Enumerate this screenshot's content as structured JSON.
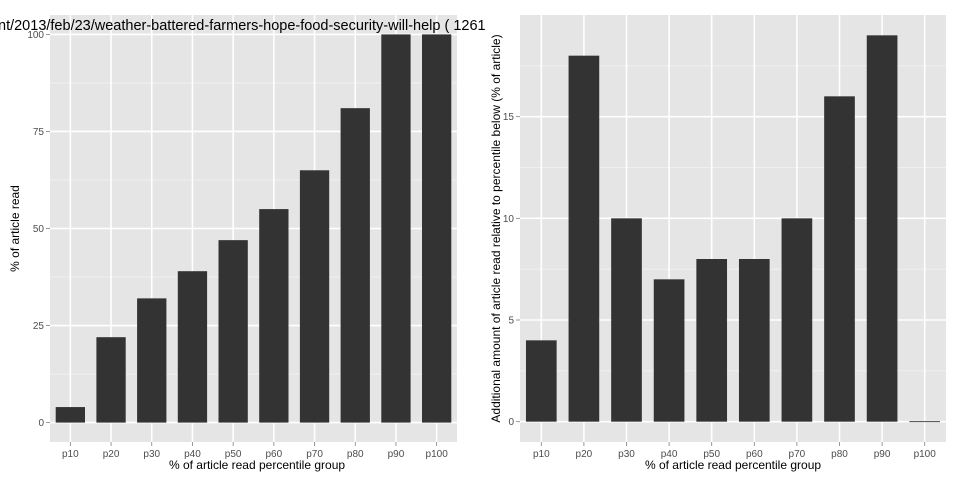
{
  "chart_data": [
    {
      "type": "bar",
      "title": "nt/2013/feb/23/weather-battered-farmers-hope-food-security-will-help ( 1261",
      "xlabel": "% of article read percentile group",
      "ylabel": "% of article read",
      "categories": [
        "p10",
        "p20",
        "p30",
        "p40",
        "p50",
        "p60",
        "p70",
        "p80",
        "p90",
        "p100"
      ],
      "values": [
        4,
        22,
        32,
        39,
        47,
        55,
        65,
        81,
        100,
        100
      ],
      "ylim": [
        -5,
        105
      ],
      "yticks": [
        0,
        25,
        50,
        75,
        100
      ],
      "grid": true,
      "bar_color": "#333333",
      "panel_background": "#e5e5e5",
      "grid_color": "#ffffff"
    },
    {
      "type": "bar",
      "title": "",
      "xlabel": "% of article read percentile group",
      "ylabel": "Additional amount of article read relative to percentile below (% of article)",
      "categories": [
        "p10",
        "p20",
        "p30",
        "p40",
        "p50",
        "p60",
        "p70",
        "p80",
        "p90",
        "p100"
      ],
      "values": [
        4,
        18,
        10,
        7,
        8,
        8,
        10,
        16,
        19,
        0
      ],
      "ylim": [
        -1,
        20
      ],
      "yticks": [
        0,
        5,
        10,
        15
      ],
      "grid": true,
      "bar_color": "#333333",
      "panel_background": "#e5e5e5",
      "grid_color": "#ffffff"
    }
  ]
}
